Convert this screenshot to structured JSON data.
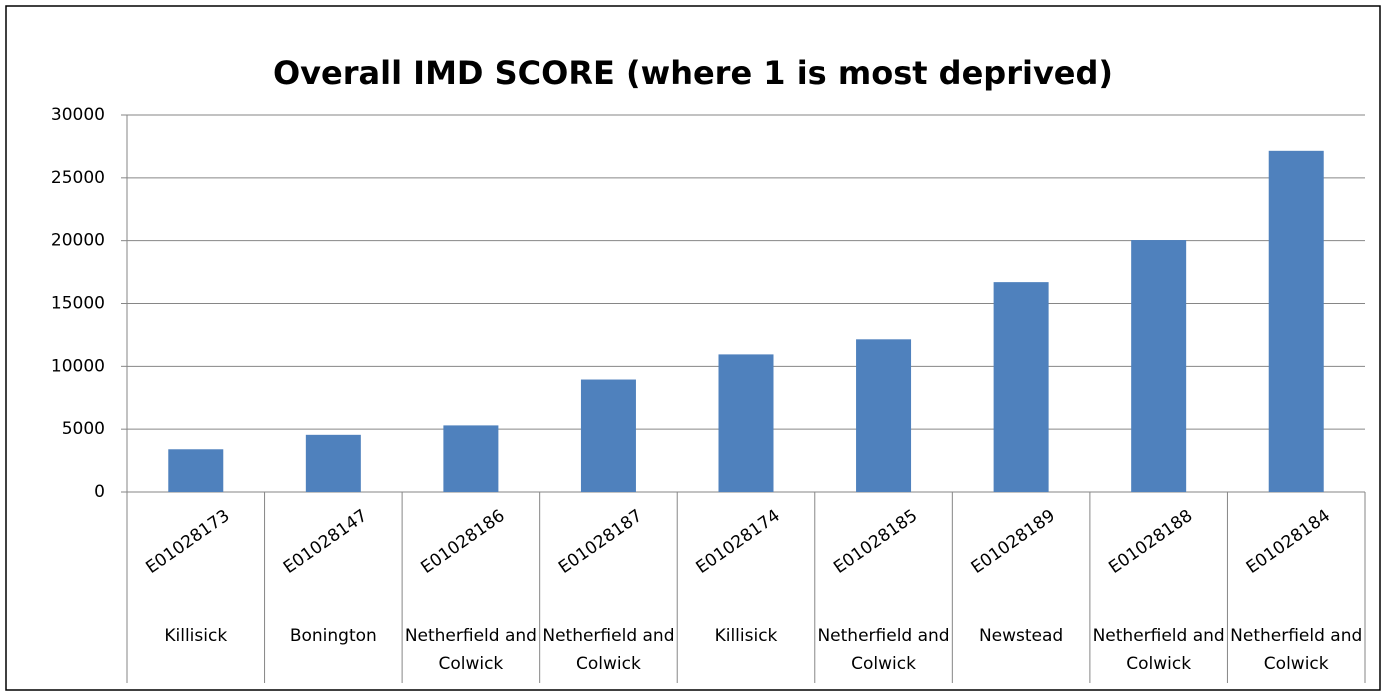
{
  "chart_data": {
    "type": "bar",
    "title": "Overall IMD SCORE (where 1 is most deprived)",
    "categories": [
      "E01028173",
      "E01028147",
      "E01028186",
      "E01028187",
      "E01028174",
      "E01028185",
      "E01028189",
      "E01028188",
      "E01028184"
    ],
    "category_groups": [
      "Killisick",
      "Bonington",
      "Netherfield and Colwick",
      "Netherfield and Colwick",
      "Killisick",
      "Netherfield and Colwick",
      "Newstead",
      "Netherfield and Colwick",
      "Netherfield and Colwick"
    ],
    "values": [
      3400,
      4550,
      5300,
      8950,
      10950,
      12150,
      16700,
      20050,
      27150
    ],
    "color": "#4f81bd",
    "ylim": [
      0,
      30000
    ],
    "yticks": [
      0,
      5000,
      10000,
      15000,
      20000,
      25000,
      30000
    ],
    "grid": true
  }
}
